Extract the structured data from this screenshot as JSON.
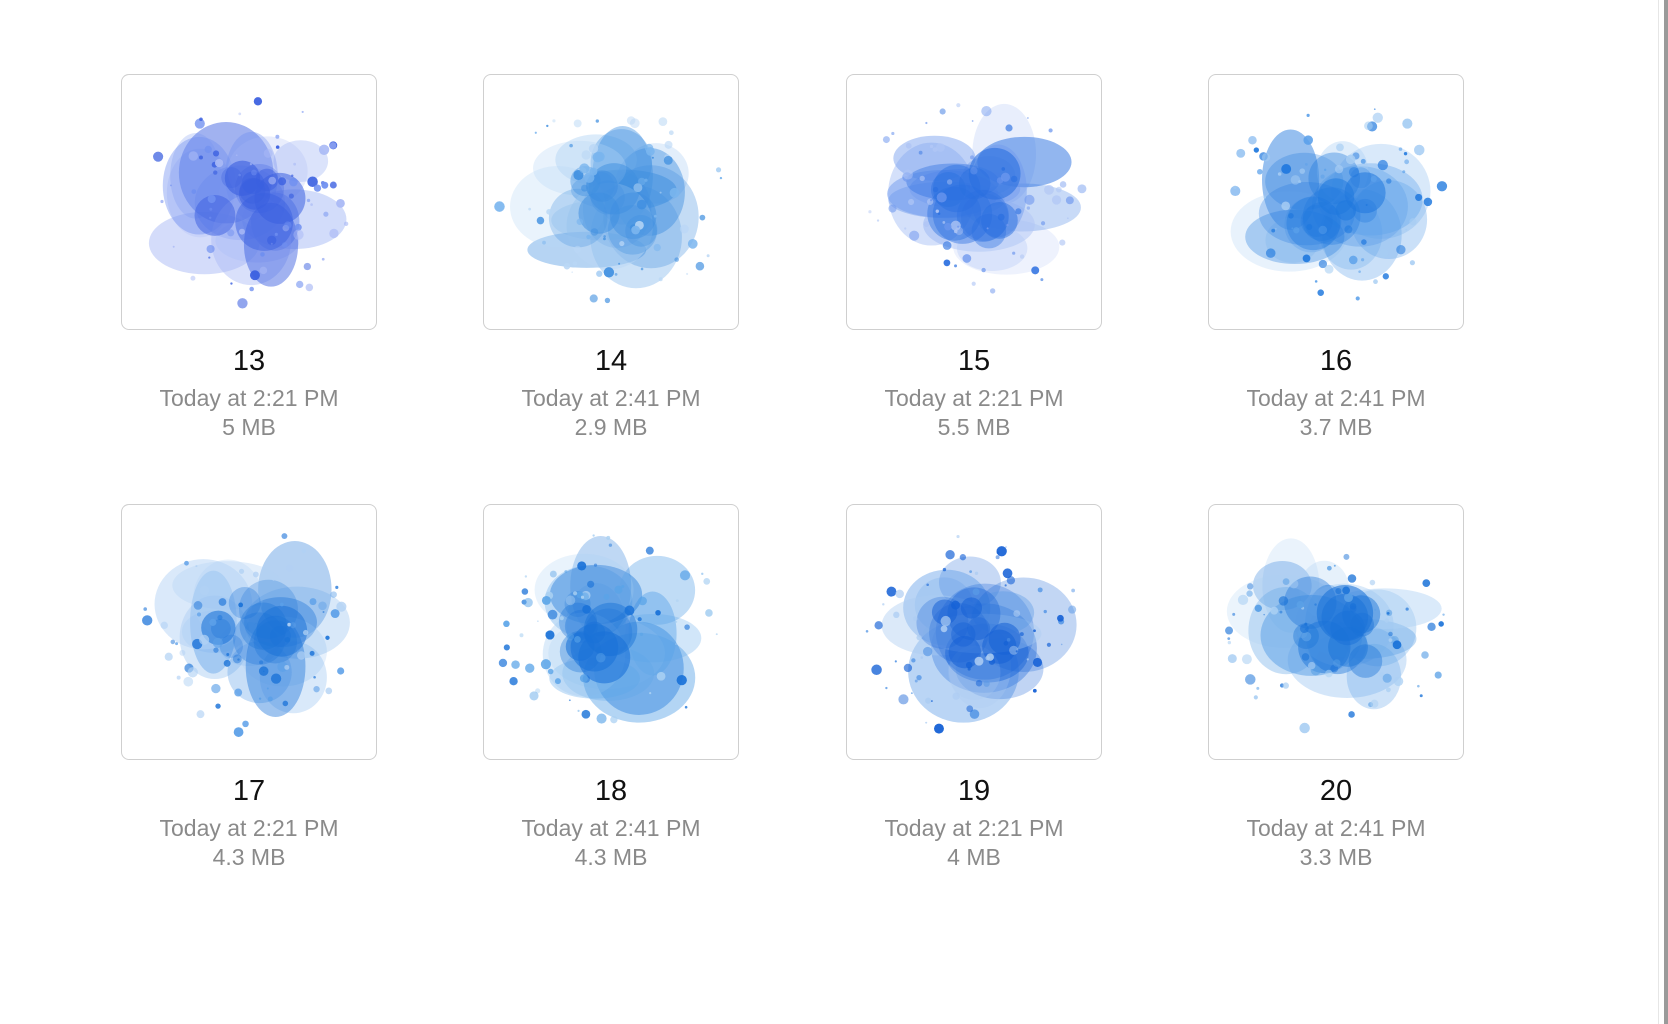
{
  "window": {
    "background": "#ffffff"
  },
  "files": [
    {
      "name": "13",
      "date": "Today at 2:21 PM",
      "size": "5 MB",
      "icon": "watercolor-splash-icon",
      "palette": [
        "#3a5fe0",
        "#6f8ff0",
        "#a9b9f5"
      ]
    },
    {
      "name": "14",
      "date": "Today at 2:41 PM",
      "size": "2.9 MB",
      "icon": "watercolor-splash-icon",
      "palette": [
        "#3f8fe0",
        "#7ab5ee",
        "#b9d7f5"
      ]
    },
    {
      "name": "15",
      "date": "Today at 2:21 PM",
      "size": "5.5 MB",
      "icon": "watercolor-splash-icon",
      "palette": [
        "#2a6fe0",
        "#6f98ee",
        "#b0c6f5"
      ]
    },
    {
      "name": "16",
      "date": "Today at 2:41 PM",
      "size": "3.7 MB",
      "icon": "watercolor-splash-icon",
      "palette": [
        "#1f78de",
        "#5aa0ea",
        "#a6cdf3"
      ]
    },
    {
      "name": "17",
      "date": "Today at 2:21 PM",
      "size": "4.3 MB",
      "icon": "watercolor-splash-icon",
      "palette": [
        "#1a72d8",
        "#5b9fe8",
        "#b1d1f4"
      ]
    },
    {
      "name": "18",
      "date": "Today at 2:41 PM",
      "size": "4.3 MB",
      "icon": "watercolor-splash-icon",
      "palette": [
        "#1a72d8",
        "#5aa4e8",
        "#a9d0f2"
      ]
    },
    {
      "name": "19",
      "date": "Today at 2:21 PM",
      "size": "4 MB",
      "icon": "watercolor-splash-icon",
      "palette": [
        "#1561d6",
        "#5898e6",
        "#acccf2"
      ]
    },
    {
      "name": "20",
      "date": "Today at 2:41 PM",
      "size": "3.3 MB",
      "icon": "watercolor-splash-icon",
      "palette": [
        "#1a72d8",
        "#5aa0e6",
        "#acd0f3"
      ]
    }
  ]
}
